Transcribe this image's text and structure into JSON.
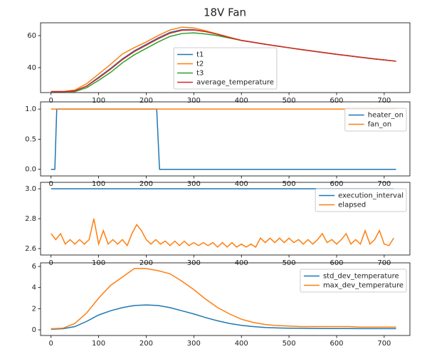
{
  "title": "18V Fan",
  "chart_data": [
    {
      "type": "line",
      "x": [
        0,
        25,
        50,
        75,
        100,
        125,
        150,
        175,
        200,
        225,
        250,
        275,
        300,
        325,
        350,
        375,
        400,
        425,
        450,
        475,
        500,
        525,
        550,
        575,
        600,
        625,
        650,
        675,
        700,
        725
      ],
      "series": [
        {
          "name": "t1",
          "color": "#1f77b4",
          "values": [
            25,
            25,
            25.5,
            28.5,
            34,
            39.5,
            45.5,
            50.5,
            54.5,
            58.5,
            62,
            63.7,
            63.7,
            62.5,
            60.8,
            58.8,
            57,
            55.8,
            54.6,
            53.5,
            52.4,
            51.3,
            50.3,
            49.3,
            48.3,
            47.4,
            46.5,
            45.6,
            44.8,
            44
          ]
        },
        {
          "name": "t2",
          "color": "#ff7f0e",
          "values": [
            25,
            25,
            26,
            30,
            36,
            42,
            48.5,
            52.5,
            56,
            60,
            63.5,
            65.3,
            64.8,
            63,
            61,
            59,
            57,
            55.8,
            54.6,
            53.5,
            52.4,
            51.3,
            50.3,
            49.3,
            48.3,
            47.4,
            46.5,
            45.6,
            44.8,
            44
          ]
        },
        {
          "name": "t3",
          "color": "#2ca02c",
          "values": [
            25,
            25,
            25,
            27.5,
            32,
            37,
            43,
            48,
            52,
            56,
            59.5,
            61.3,
            61.7,
            61,
            60,
            58.5,
            57,
            55.8,
            54.6,
            53.5,
            52.4,
            51.3,
            50.3,
            49.3,
            48.3,
            47.4,
            46.5,
            45.6,
            44.8,
            44
          ]
        },
        {
          "name": "average_temperature",
          "color": "#d62728",
          "values": [
            25,
            25,
            25.5,
            28.5,
            33.5,
            39,
            45,
            50,
            54,
            58,
            61.5,
            63.3,
            63.5,
            62.5,
            60.8,
            58.8,
            57,
            55.8,
            54.6,
            53.5,
            52.4,
            51.3,
            50.3,
            49.3,
            48.3,
            47.4,
            46.5,
            45.6,
            44.8,
            44
          ]
        }
      ],
      "xlim": [
        -22,
        754
      ],
      "xticks": [
        0,
        100,
        200,
        300,
        400,
        500,
        600,
        700
      ],
      "ylim": [
        24.4,
        68
      ],
      "yticks": [
        40,
        60
      ],
      "legend": "lower center"
    },
    {
      "type": "line",
      "x": [
        0,
        8,
        12,
        222,
        228,
        725
      ],
      "series": [
        {
          "name": "heater_on",
          "color": "#1f77b4",
          "values": [
            0,
            0,
            1,
            1,
            0,
            0
          ]
        },
        {
          "name": "fan_on",
          "color": "#ff7f0e",
          "values": [
            1,
            1,
            1,
            1,
            1,
            1
          ]
        }
      ],
      "xlim": [
        -22,
        754
      ],
      "xticks": [
        0,
        100,
        200,
        300,
        400,
        500,
        600,
        700
      ],
      "ylim": [
        -0.11,
        1.12
      ],
      "yticks": [
        {
          "value": 0,
          "label": "0.0"
        },
        0.5,
        {
          "value": 1,
          "label": "1.0"
        }
      ],
      "legend": "upper right"
    },
    {
      "type": "line",
      "x": [
        0,
        10,
        20,
        30,
        40,
        50,
        60,
        70,
        80,
        90,
        100,
        110,
        120,
        130,
        140,
        150,
        160,
        170,
        180,
        190,
        200,
        210,
        220,
        230,
        240,
        250,
        260,
        270,
        280,
        290,
        300,
        310,
        320,
        330,
        340,
        350,
        360,
        370,
        380,
        390,
        400,
        410,
        420,
        430,
        440,
        450,
        460,
        470,
        480,
        490,
        500,
        510,
        520,
        530,
        540,
        550,
        560,
        570,
        580,
        590,
        600,
        610,
        620,
        630,
        640,
        650,
        660,
        670,
        680,
        690,
        700,
        710,
        720
      ],
      "series": [
        {
          "name": "execution_interval",
          "color": "#1f77b4",
          "values": [
            3,
            3,
            3,
            3,
            3,
            3,
            3,
            3,
            3,
            3,
            3,
            3,
            3,
            3,
            3,
            3,
            3,
            3,
            3,
            3,
            3,
            3,
            3,
            3,
            3,
            3,
            3,
            3,
            3,
            3,
            3,
            3,
            3,
            3,
            3,
            3,
            3,
            3,
            3,
            3,
            3,
            3,
            3,
            3,
            3,
            3,
            3,
            3,
            3,
            3,
            3,
            3,
            3,
            3,
            3,
            3,
            3,
            3,
            3,
            3,
            3,
            3,
            3,
            3,
            3,
            3,
            3,
            3,
            3,
            3,
            3,
            3,
            3
          ]
        },
        {
          "name": "elapsed",
          "color": "#ff7f0e",
          "values": [
            2.7,
            2.66,
            2.7,
            2.63,
            2.66,
            2.63,
            2.66,
            2.63,
            2.66,
            2.8,
            2.63,
            2.72,
            2.63,
            2.66,
            2.63,
            2.66,
            2.62,
            2.7,
            2.76,
            2.72,
            2.66,
            2.63,
            2.66,
            2.63,
            2.65,
            2.62,
            2.65,
            2.62,
            2.65,
            2.62,
            2.64,
            2.62,
            2.64,
            2.62,
            2.64,
            2.61,
            2.64,
            2.61,
            2.64,
            2.61,
            2.63,
            2.61,
            2.63,
            2.61,
            2.67,
            2.64,
            2.67,
            2.64,
            2.67,
            2.64,
            2.67,
            2.64,
            2.66,
            2.63,
            2.66,
            2.63,
            2.66,
            2.7,
            2.64,
            2.66,
            2.63,
            2.66,
            2.7,
            2.63,
            2.66,
            2.63,
            2.72,
            2.63,
            2.66,
            2.72,
            2.63,
            2.62,
            2.67
          ]
        }
      ],
      "xlim": [
        -22,
        754
      ],
      "xticks": [
        0,
        100,
        200,
        300,
        400,
        500,
        600,
        700
      ],
      "ylim": [
        2.557,
        3.043
      ],
      "yticks": [
        2.6,
        2.8,
        {
          "value": 3,
          "label": "3.0"
        }
      ],
      "legend": "upper right"
    },
    {
      "type": "line",
      "x": [
        0,
        25,
        50,
        75,
        100,
        125,
        150,
        175,
        200,
        225,
        250,
        275,
        300,
        325,
        350,
        375,
        400,
        425,
        450,
        475,
        500,
        525,
        550,
        575,
        600,
        625,
        650,
        675,
        700,
        725
      ],
      "series": [
        {
          "name": "std_dev_temperature",
          "color": "#1f77b4",
          "values": [
            0.05,
            0.1,
            0.3,
            0.8,
            1.4,
            1.8,
            2.1,
            2.3,
            2.35,
            2.3,
            2.1,
            1.8,
            1.5,
            1.15,
            0.85,
            0.6,
            0.42,
            0.3,
            0.22,
            0.18,
            0.15,
            0.14,
            0.13,
            0.12,
            0.12,
            0.12,
            0.11,
            0.11,
            0.11,
            0.11
          ]
        },
        {
          "name": "max_dev_temperature",
          "color": "#ff7f0e",
          "values": [
            0.1,
            0.15,
            0.6,
            1.6,
            3.0,
            4.2,
            5.0,
            5.8,
            5.8,
            5.6,
            5.3,
            4.6,
            3.8,
            2.9,
            2.1,
            1.5,
            1.0,
            0.7,
            0.5,
            0.4,
            0.35,
            0.3,
            0.3,
            0.3,
            0.3,
            0.3,
            0.25,
            0.25,
            0.25,
            0.25
          ]
        }
      ],
      "xlim": [
        -22,
        754
      ],
      "xticks": [
        0,
        100,
        200,
        300,
        400,
        500,
        600,
        700
      ],
      "ylim": [
        -0.54,
        6.34
      ],
      "yticks": [
        0,
        2,
        4,
        6
      ],
      "legend": "upper right"
    }
  ]
}
